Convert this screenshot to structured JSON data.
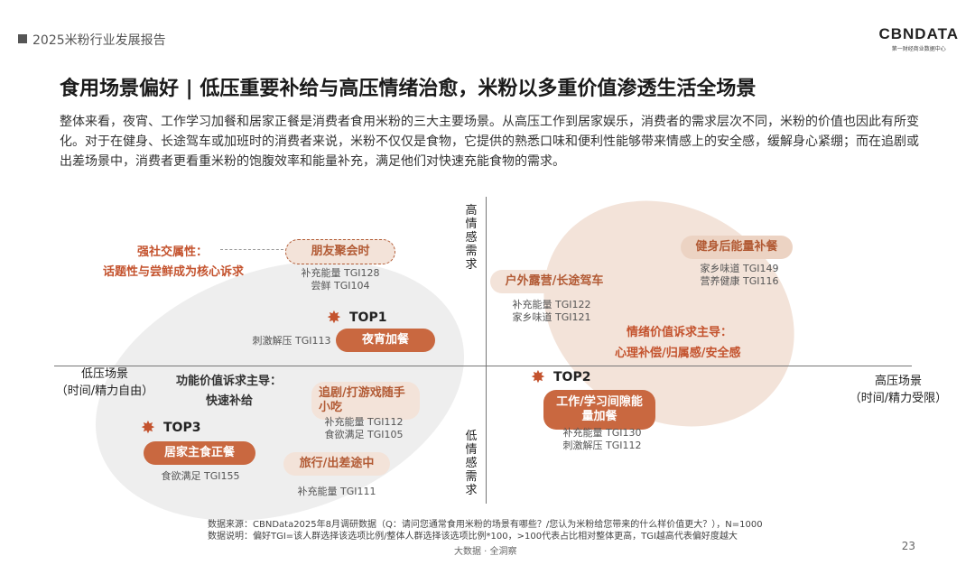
{
  "header": {
    "report_label": "2025米粉行业发展报告"
  },
  "logo": {
    "main": "CBNDATA",
    "sub": "第一财经商业数据中心"
  },
  "title": "食用场景偏好 | 低压重要补给与高压情绪治愈，米粉以多重价值渗透生活全场景",
  "description": "整体来看，夜宵、工作学习加餐和居家正餐是消费者食用米粉的三大主要场景。从高压工作到居家娱乐，消费者的需求层次不同，米粉的价值也因此有所变化。对于在健身、长途驾车或加班时的消费者来说，米粉不仅仅是食物，它提供的熟悉口味和便利性能够带来情感上的安全感，缓解身心紧绷；而在追剧或出差场景中，消费者更看重米粉的饱腹效率和能量补充，满足他们对快速充能食物的需求。",
  "axes": {
    "top": "高情感需求",
    "bottom": "低情感需求",
    "left_line1": "低压场景",
    "left_line2": "（时间/精力自由）",
    "right_line1": "高压场景",
    "right_line2": "（时间/精力受限）"
  },
  "groups": {
    "social_title": "强社交属性：",
    "social_sub": "话题性与尝鲜成为核心诉求",
    "functional_title": "功能价值诉求主导：",
    "functional_sub": "快速补给",
    "emotional_title": "情绪价值诉求主导：",
    "emotional_sub": "心理补偿/归属感/安全感"
  },
  "scenes": {
    "friends": {
      "label": "朋友聚会时",
      "tgi1": "补充能量 TGI128",
      "tgi2": "尝鲜 TGI104"
    },
    "night": {
      "rank": "TOP1",
      "label": "夜宵加餐",
      "tgi1": "刺激解压 TGI113"
    },
    "drama": {
      "label": "追剧/打游戏随手小吃",
      "tgi1": "补充能量 TGI112",
      "tgi2": "食欲满足 TGI105"
    },
    "home": {
      "rank": "TOP3",
      "label": "居家主食正餐",
      "tgi1": "食欲满足 TGI155"
    },
    "travel": {
      "label": "旅行/出差途中",
      "tgi1": "补充能量 TGI111"
    },
    "outdoor": {
      "label": "户外露营/长途驾车",
      "tgi1": "补充能量 TGI122",
      "tgi2": "家乡味道 TGI121"
    },
    "gym": {
      "label": "健身后能量补餐",
      "tgi1": "家乡味道 TGI149",
      "tgi2": "营养健康 TGI116"
    },
    "work": {
      "rank": "TOP2",
      "label": "工作/学习间隙能量加餐",
      "tgi1": "补充能量 TGI130",
      "tgi2": "刺激解压 TGI112"
    }
  },
  "footer": {
    "source": "数据来源：CBNData2025年8月调研数据（Q：请问您通常食用米粉的场景有哪些？/您认为米粉给您带来的什么样价值更大？），N=1000",
    "note": "数据说明：偏好TGI=该人群选择该选项比例/整体人群选择该选项比例*100，>100代表占比相对整体更高，TGI越高代表偏好度越大",
    "center": "大数据 · 全洞察",
    "page": "23"
  },
  "colors": {
    "accent": "#c96840",
    "accent_text": "#c4532e",
    "light_fill": "#f3e3d9",
    "grey_fill": "#eeeeee"
  }
}
